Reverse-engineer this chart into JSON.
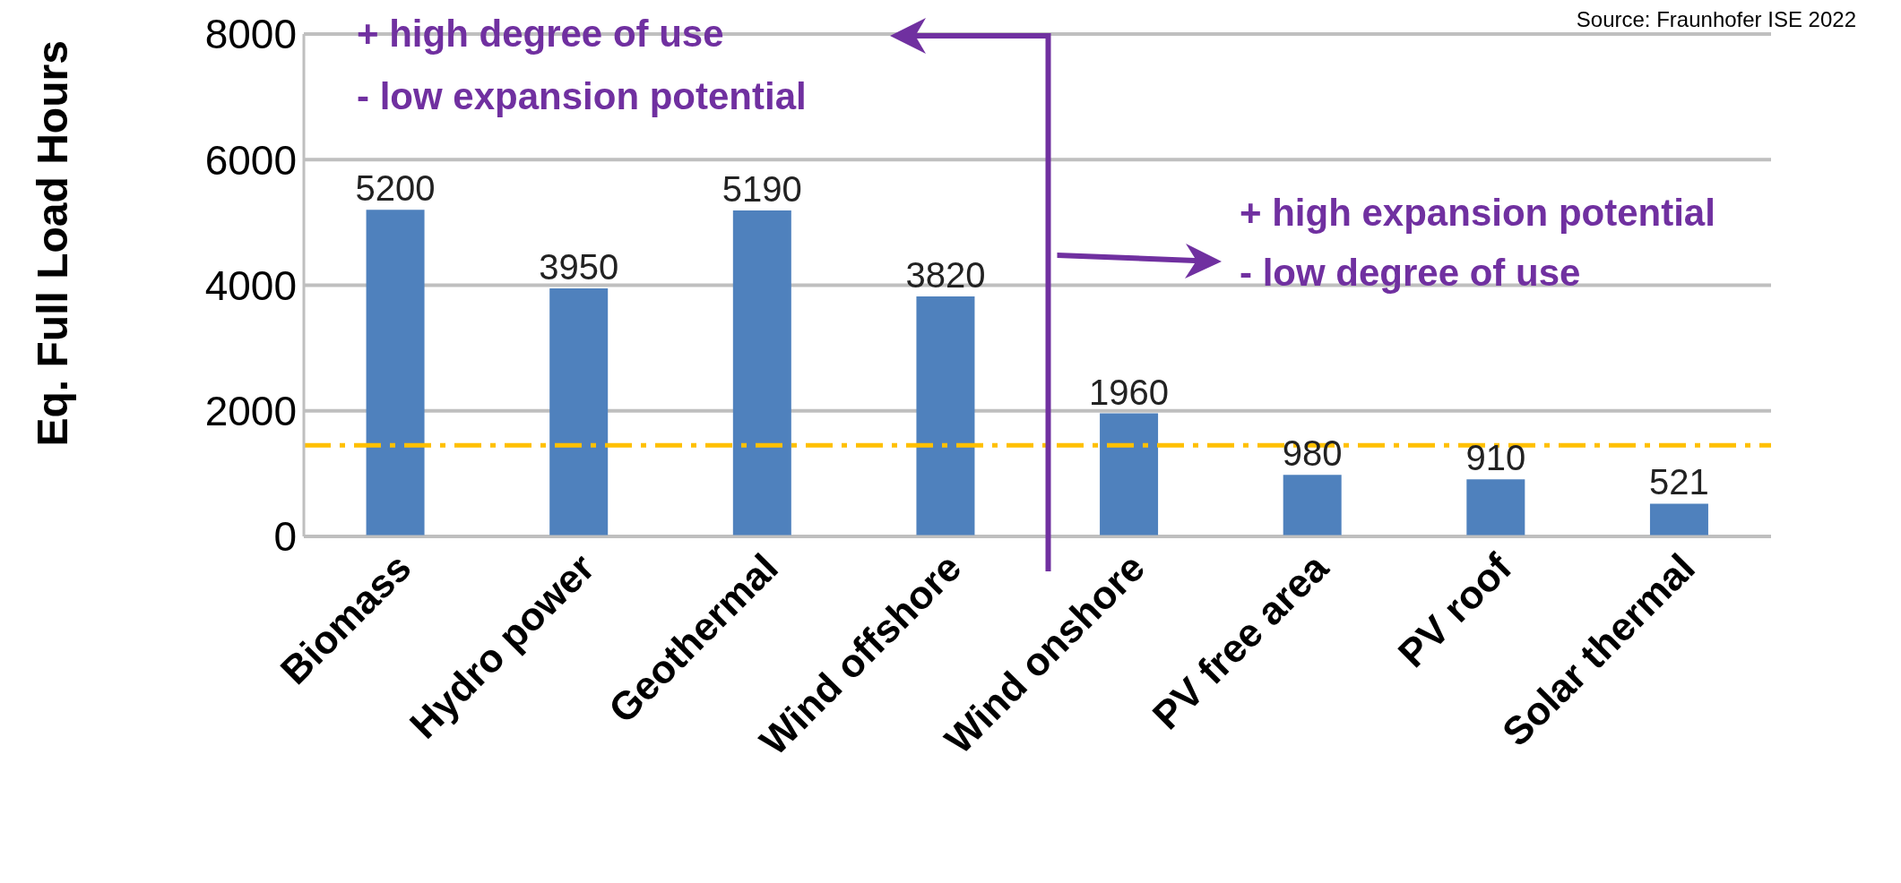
{
  "chart_data": {
    "type": "bar",
    "ylabel": "Eq. Full Load Hours",
    "categories": [
      "Biomass",
      "Hydro power",
      "Geothermal",
      "Wind offshore",
      "Wind onshore",
      "PV free area",
      "PV roof",
      "Solar thermal"
    ],
    "values": [
      5200,
      3950,
      5190,
      3820,
      1960,
      980,
      910,
      521
    ],
    "color": "#4f81bd",
    "data_labels": true,
    "ylim": [
      0,
      8000
    ],
    "yticks": [
      0,
      2000,
      4000,
      6000,
      8000
    ],
    "grid": "y",
    "ref_lines": [
      {
        "axis": "y",
        "value": 1450,
        "color": "#ffc000",
        "line_style": "dashed"
      }
    ],
    "annotations": [
      "+ high degree of use",
      "- low expansion potential",
      "+ high expansion potential",
      "- low degree of use",
      "Source: Fraunhofer ISE 2022"
    ]
  }
}
